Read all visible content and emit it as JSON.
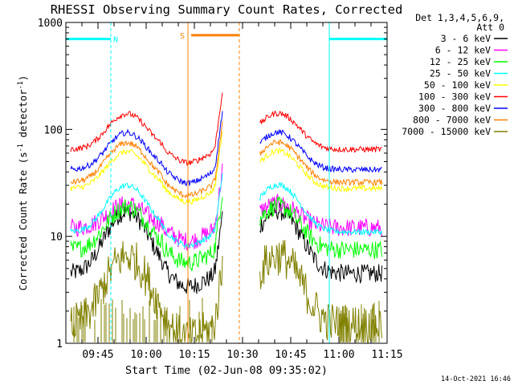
{
  "chart_data": {
    "type": "line",
    "title": "RHESSI Observing Summary Count Rates, Corrected",
    "xlabel": "Start Time (02-Jun-08 09:35:02)",
    "ylabel": "Corrected Count Rate (s",
    "ylabel_sup": "-1",
    "ylabel_tail": " detector",
    "ylabel_sup2": "-1",
    "ylabel_end": ")",
    "y_scale": "log",
    "ylim": [
      1,
      1000
    ],
    "xlim_minutes": [
      0,
      100
    ],
    "x_ticks": [
      {
        "m": 10,
        "label": "09:45"
      },
      {
        "m": 25,
        "label": "10:00"
      },
      {
        "m": 40,
        "label": "10:15"
      },
      {
        "m": 55,
        "label": "10:30"
      },
      {
        "m": 70,
        "label": "10:45"
      },
      {
        "m": 85,
        "label": "11:00"
      },
      {
        "m": 100,
        "label": "11:15"
      }
    ],
    "y_ticks": [
      {
        "v": 1,
        "label": "1"
      },
      {
        "v": 10,
        "label": "10"
      },
      {
        "v": 100,
        "label": "100"
      },
      {
        "v": 1000,
        "label": "1000"
      }
    ],
    "legend_header": [
      "Det 1,3,4,5,6,9,",
      "Att 0"
    ],
    "legend_position": "right",
    "data_gap_minutes": [
      49,
      60
    ],
    "night_spans": [
      {
        "label": "N",
        "start": 0,
        "end": 14
      },
      {
        "label": "",
        "start": 82,
        "end": 100
      }
    ],
    "saa_spans": [
      {
        "label": "S",
        "start": 38,
        "end": 54
      }
    ],
    "series": [
      {
        "name": "3 - 6 keV",
        "color": "#000000",
        "peak": 17,
        "base": 4.5
      },
      {
        "name": "6 - 12 keV",
        "color": "#ff00ff",
        "peak": 20,
        "base": 12
      },
      {
        "name": "12 - 25 keV",
        "color": "#00ff00",
        "peak": 19,
        "base": 7.5
      },
      {
        "name": "25 - 50 keV",
        "color": "#00ffff",
        "peak": 30,
        "base": 11
      },
      {
        "name": "50 - 100 keV",
        "color": "#ffff00",
        "peak": 62,
        "base": 28
      },
      {
        "name": "100 - 300 keV",
        "color": "#ff0000",
        "peak": 140,
        "base": 65
      },
      {
        "name": "300 - 800 keV",
        "color": "#0000ff",
        "peak": 93,
        "base": 42
      },
      {
        "name": "800 - 7000 keV",
        "color": "#ff8000",
        "peak": 75,
        "base": 32
      },
      {
        "name": "7000 - 15000 keV",
        "color": "#808000",
        "peak": 6.5,
        "base": 1.5
      }
    ],
    "footer_date": "14-Oct-2021 16:46"
  }
}
